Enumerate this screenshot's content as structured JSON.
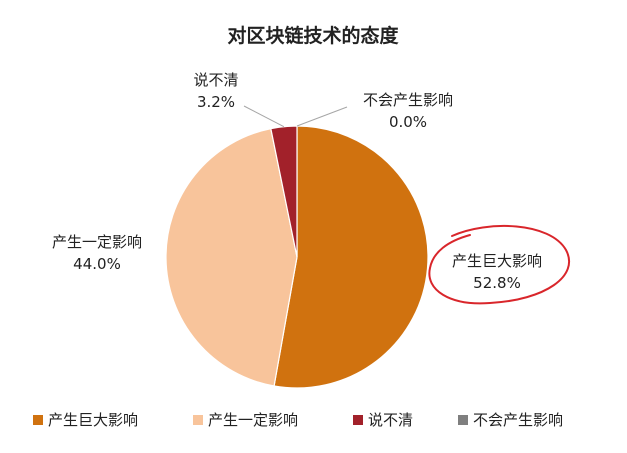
{
  "chart_data": {
    "type": "pie",
    "title": "对区块链技术的态度",
    "slices": [
      {
        "label": "产生巨大影响",
        "value": 52.8,
        "value_label": "52.8%",
        "color": "#d0720f"
      },
      {
        "label": "产生一定影响",
        "value": 44.0,
        "value_label": "44.0%",
        "color": "#f8c49b"
      },
      {
        "label": "说不清",
        "value": 3.2,
        "value_label": "3.2%",
        "color": "#a2212a"
      },
      {
        "label": "不会产生影响",
        "value": 0.0,
        "value_label": "0.0%",
        "color": "#7f7f7f"
      }
    ],
    "start_angle_deg": 0,
    "direction": "clockwise",
    "legend_position": "bottom",
    "annotation": {
      "type": "hand-drawn-circle",
      "target": "产生巨大影响",
      "color": "#d9262b"
    }
  }
}
